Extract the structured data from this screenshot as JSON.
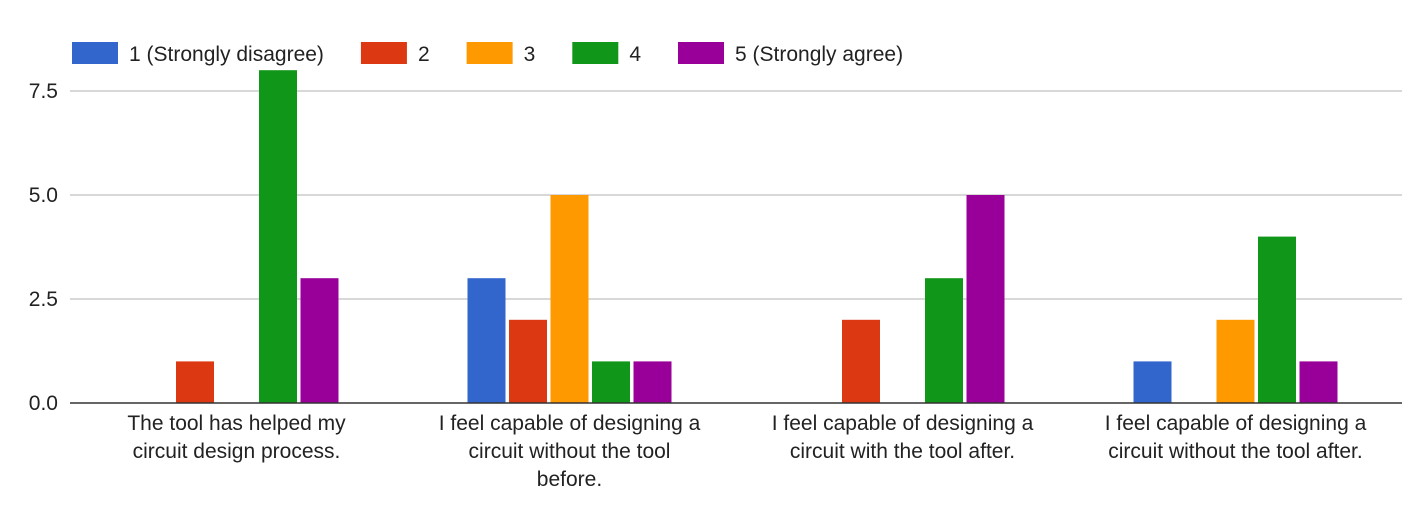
{
  "chart_data": {
    "type": "bar",
    "categories": [
      [
        "The tool has helped my",
        "circuit design process."
      ],
      [
        "I feel capable of designing a",
        "circuit without the tool",
        "before."
      ],
      [
        "I feel capable of designing a",
        "circuit with the tool after."
      ],
      [
        "I feel capable of designing a",
        "circuit without the tool after."
      ]
    ],
    "series": [
      {
        "name": "1 (Strongly disagree)",
        "color": "#3366cc",
        "values": [
          0,
          3,
          0,
          1
        ]
      },
      {
        "name": "2",
        "color": "#dc3912",
        "values": [
          1,
          2,
          2,
          0
        ]
      },
      {
        "name": "3",
        "color": "#ff9900",
        "values": [
          0,
          5,
          0,
          2
        ]
      },
      {
        "name": "4",
        "color": "#109618",
        "values": [
          8,
          1,
          3,
          4
        ]
      },
      {
        "name": "5 (Strongly agree)",
        "color": "#990099",
        "values": [
          3,
          1,
          5,
          1
        ]
      }
    ],
    "yticks": [
      "0.0",
      "2.5",
      "5.0",
      "7.5"
    ],
    "ylim": [
      0,
      8
    ],
    "legend_position": "top-left",
    "grid": true
  }
}
